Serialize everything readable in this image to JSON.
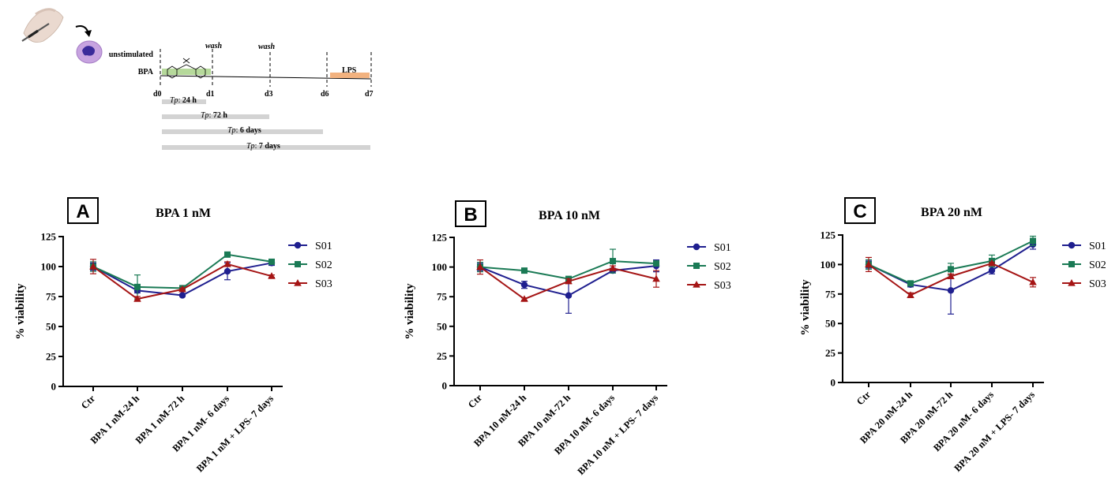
{
  "schema": {
    "unstimulated_label": "unstimulated",
    "bpa_label": "BPA",
    "wash1": "wash",
    "wash2": "wash",
    "lps_label": "LPS",
    "days": [
      "d0",
      "d1",
      "d3",
      "d6",
      "d7"
    ],
    "tp_bars": [
      {
        "prefix": "Tp",
        "value": "24 h"
      },
      {
        "prefix": "Tp",
        "value": "72 h"
      },
      {
        "prefix": "Tp",
        "value": "6 days"
      },
      {
        "prefix": "Tp",
        "value": "7 days"
      }
    ],
    "colors": {
      "bpa_bar": "#b6d99b",
      "lps_bar": "#f2b27f",
      "tp_bar": "#d3d3d3",
      "cell": "#c7a3e0"
    }
  },
  "chart_data": [
    {
      "type": "line",
      "panel_label": "A",
      "title": "BPA 1 nM",
      "ylabel": "% viability",
      "ylim": [
        0,
        125
      ],
      "yticks": [
        0,
        25,
        50,
        75,
        100,
        125
      ],
      "categories": [
        "Ctr",
        "BPA 1 nM-24 h",
        "BPA 1 nM-72 h",
        "BPA 1 nM- 6 days",
        "BPA 1 nM + LPS- 7 days"
      ],
      "series": [
        {
          "name": "S01",
          "color": "#1f1f8f",
          "marker": "circle",
          "values": [
            100,
            80,
            76,
            96,
            103
          ],
          "errors": [
            3,
            2,
            1,
            7,
            2
          ]
        },
        {
          "name": "S02",
          "color": "#1a7a55",
          "marker": "square",
          "values": [
            100,
            83,
            82,
            110,
            104
          ],
          "errors": [
            4,
            10,
            1,
            1,
            1
          ]
        },
        {
          "name": "S03",
          "color": "#a51515",
          "marker": "triangle",
          "values": [
            100,
            73,
            81,
            102,
            92
          ],
          "errors": [
            6,
            2,
            1,
            2,
            1
          ]
        }
      ]
    },
    {
      "type": "line",
      "panel_label": "B",
      "title": "BPA 10 nM",
      "ylabel": "% viability",
      "ylim": [
        0,
        125
      ],
      "yticks": [
        0,
        25,
        50,
        75,
        100,
        125
      ],
      "categories": [
        "Ctr",
        "BPA 10 nM-24 h",
        "BPA 10 nM-72 h",
        "BPA 10 nM- 6 days",
        "BPA 10 nM + LPS- 7 days"
      ],
      "series": [
        {
          "name": "S01",
          "color": "#1f1f8f",
          "marker": "circle",
          "values": [
            100,
            85,
            76,
            97,
            101
          ],
          "errors": [
            3,
            3,
            15,
            2,
            5
          ]
        },
        {
          "name": "S02",
          "color": "#1a7a55",
          "marker": "square",
          "values": [
            100,
            97,
            90,
            105,
            103
          ],
          "errors": [
            4,
            1,
            1,
            10,
            2
          ]
        },
        {
          "name": "S03",
          "color": "#a51515",
          "marker": "triangle",
          "values": [
            100,
            73,
            88,
            99,
            90
          ],
          "errors": [
            6,
            1,
            2,
            2,
            7
          ]
        }
      ]
    },
    {
      "type": "line",
      "panel_label": "C",
      "title": "BPA 20 nM",
      "ylabel": "% viability",
      "ylim": [
        0,
        125
      ],
      "yticks": [
        0,
        25,
        50,
        75,
        100,
        125
      ],
      "categories": [
        "Ctr",
        "BPA 20 nM-24 h",
        "BPA 20 nM-72 h",
        "BPA 20 nM- 6 days",
        "BPA 20 nM + LPS- 7 days"
      ],
      "series": [
        {
          "name": "S01",
          "color": "#1f1f8f",
          "marker": "circle",
          "values": [
            100,
            83,
            78,
            95,
            117
          ],
          "errors": [
            3,
            2,
            20,
            3,
            4
          ]
        },
        {
          "name": "S02",
          "color": "#1a7a55",
          "marker": "square",
          "values": [
            100,
            84,
            96,
            103,
            120
          ],
          "errors": [
            4,
            1,
            5,
            5,
            4
          ]
        },
        {
          "name": "S03",
          "color": "#a51515",
          "marker": "triangle",
          "values": [
            100,
            74,
            90,
            101,
            85
          ],
          "errors": [
            6,
            2,
            2,
            1,
            4
          ]
        }
      ]
    }
  ]
}
